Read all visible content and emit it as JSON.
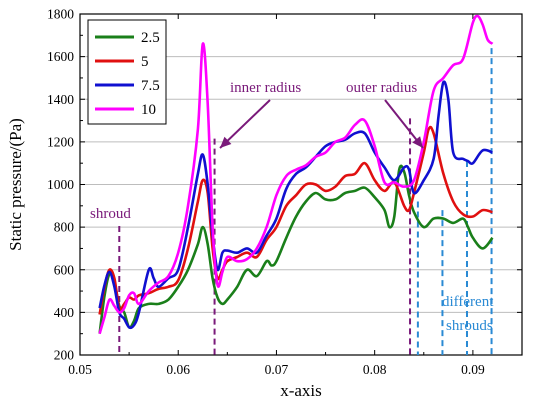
{
  "chart_data": {
    "type": "line",
    "title": "",
    "xlabel": "x-axis",
    "ylabel": "Static pressure/(Pa)",
    "xlim": [
      0.05,
      0.095
    ],
    "ylim": [
      200,
      1800
    ],
    "xticks": [
      0.05,
      0.06,
      0.07,
      0.08,
      0.09
    ],
    "xtick_labels": [
      "0.05",
      "0.06",
      "0.07",
      "0.08",
      "0.09"
    ],
    "yticks": [
      200,
      400,
      600,
      800,
      1000,
      1200,
      1400,
      1600,
      1800
    ],
    "ytick_labels": [
      "200",
      "400",
      "600",
      "800",
      "1000",
      "1200",
      "1400",
      "1600",
      "1800"
    ],
    "grid": "horizontal",
    "legend_position": "top-left",
    "series": [
      {
        "name": "2.5",
        "color": "#1a7f1a",
        "points": [
          [
            0.052,
            300
          ],
          [
            0.0525,
            480
          ],
          [
            0.053,
            580
          ],
          [
            0.0535,
            540
          ],
          [
            0.054,
            430
          ],
          [
            0.0545,
            400
          ],
          [
            0.055,
            330
          ],
          [
            0.0555,
            360
          ],
          [
            0.056,
            420
          ],
          [
            0.057,
            440
          ],
          [
            0.058,
            440
          ],
          [
            0.059,
            460
          ],
          [
            0.06,
            520
          ],
          [
            0.061,
            600
          ],
          [
            0.062,
            720
          ],
          [
            0.0625,
            800
          ],
          [
            0.063,
            720
          ],
          [
            0.0635,
            560
          ],
          [
            0.064,
            470
          ],
          [
            0.0645,
            440
          ],
          [
            0.065,
            460
          ],
          [
            0.066,
            520
          ],
          [
            0.067,
            600
          ],
          [
            0.068,
            570
          ],
          [
            0.069,
            640
          ],
          [
            0.0695,
            620
          ],
          [
            0.07,
            640
          ],
          [
            0.071,
            750
          ],
          [
            0.072,
            850
          ],
          [
            0.073,
            920
          ],
          [
            0.074,
            960
          ],
          [
            0.075,
            930
          ],
          [
            0.076,
            930
          ],
          [
            0.077,
            960
          ],
          [
            0.078,
            970
          ],
          [
            0.079,
            985
          ],
          [
            0.08,
            940
          ],
          [
            0.081,
            880
          ],
          [
            0.0815,
            800
          ],
          [
            0.082,
            850
          ],
          [
            0.0825,
            1070
          ],
          [
            0.083,
            1060
          ],
          [
            0.0835,
            950
          ],
          [
            0.084,
            870
          ],
          [
            0.085,
            800
          ],
          [
            0.086,
            840
          ],
          [
            0.087,
            840
          ],
          [
            0.088,
            820
          ],
          [
            0.089,
            840
          ],
          [
            0.0895,
            800
          ],
          [
            0.09,
            750
          ],
          [
            0.091,
            700
          ],
          [
            0.092,
            750
          ]
        ]
      },
      {
        "name": "5",
        "color": "#e01010",
        "points": [
          [
            0.052,
            390
          ],
          [
            0.0525,
            520
          ],
          [
            0.053,
            600
          ],
          [
            0.0535,
            560
          ],
          [
            0.054,
            420
          ],
          [
            0.0545,
            440
          ],
          [
            0.055,
            470
          ],
          [
            0.0555,
            460
          ],
          [
            0.056,
            480
          ],
          [
            0.057,
            490
          ],
          [
            0.058,
            510
          ],
          [
            0.059,
            520
          ],
          [
            0.06,
            550
          ],
          [
            0.061,
            700
          ],
          [
            0.062,
            920
          ],
          [
            0.0625,
            1020
          ],
          [
            0.063,
            960
          ],
          [
            0.0635,
            700
          ],
          [
            0.064,
            560
          ],
          [
            0.0645,
            600
          ],
          [
            0.065,
            640
          ],
          [
            0.066,
            660
          ],
          [
            0.067,
            680
          ],
          [
            0.068,
            660
          ],
          [
            0.069,
            740
          ],
          [
            0.07,
            800
          ],
          [
            0.071,
            900
          ],
          [
            0.072,
            950
          ],
          [
            0.073,
            1000
          ],
          [
            0.074,
            1000
          ],
          [
            0.075,
            970
          ],
          [
            0.076,
            990
          ],
          [
            0.077,
            1040
          ],
          [
            0.078,
            1050
          ],
          [
            0.079,
            1100
          ],
          [
            0.08,
            1020
          ],
          [
            0.081,
            970
          ],
          [
            0.082,
            1010
          ],
          [
            0.083,
            900
          ],
          [
            0.0835,
            880
          ],
          [
            0.084,
            960
          ],
          [
            0.085,
            1150
          ],
          [
            0.0855,
            1260
          ],
          [
            0.086,
            1240
          ],
          [
            0.087,
            1050
          ],
          [
            0.088,
            920
          ],
          [
            0.089,
            860
          ],
          [
            0.09,
            850
          ],
          [
            0.091,
            880
          ],
          [
            0.092,
            870
          ]
        ]
      },
      {
        "name": "7.5",
        "color": "#1010d0",
        "points": [
          [
            0.052,
            420
          ],
          [
            0.0525,
            530
          ],
          [
            0.053,
            590
          ],
          [
            0.0535,
            520
          ],
          [
            0.054,
            400
          ],
          [
            0.0545,
            370
          ],
          [
            0.055,
            330
          ],
          [
            0.0555,
            340
          ],
          [
            0.056,
            400
          ],
          [
            0.057,
            600
          ],
          [
            0.0575,
            560
          ],
          [
            0.058,
            520
          ],
          [
            0.059,
            560
          ],
          [
            0.06,
            600
          ],
          [
            0.061,
            800
          ],
          [
            0.062,
            1050
          ],
          [
            0.0625,
            1140
          ],
          [
            0.063,
            1000
          ],
          [
            0.0635,
            760
          ],
          [
            0.064,
            600
          ],
          [
            0.0645,
            680
          ],
          [
            0.065,
            690
          ],
          [
            0.066,
            680
          ],
          [
            0.067,
            700
          ],
          [
            0.068,
            680
          ],
          [
            0.069,
            760
          ],
          [
            0.07,
            840
          ],
          [
            0.071,
            980
          ],
          [
            0.072,
            1050
          ],
          [
            0.073,
            1080
          ],
          [
            0.074,
            1130
          ],
          [
            0.075,
            1180
          ],
          [
            0.076,
            1200
          ],
          [
            0.077,
            1210
          ],
          [
            0.078,
            1240
          ],
          [
            0.079,
            1240
          ],
          [
            0.08,
            1150
          ],
          [
            0.081,
            1080
          ],
          [
            0.082,
            1020
          ],
          [
            0.083,
            1080
          ],
          [
            0.0835,
            1070
          ],
          [
            0.084,
            960
          ],
          [
            0.085,
            1020
          ],
          [
            0.086,
            1120
          ],
          [
            0.0865,
            1320
          ],
          [
            0.087,
            1480
          ],
          [
            0.0875,
            1400
          ],
          [
            0.088,
            1150
          ],
          [
            0.089,
            1120
          ],
          [
            0.0895,
            1110
          ],
          [
            0.09,
            1100
          ],
          [
            0.091,
            1160
          ],
          [
            0.092,
            1150
          ]
        ]
      },
      {
        "name": "10",
        "color": "#ff00ff",
        "points": [
          [
            0.052,
            300
          ],
          [
            0.0525,
            380
          ],
          [
            0.053,
            460
          ],
          [
            0.0535,
            430
          ],
          [
            0.054,
            400
          ],
          [
            0.0545,
            420
          ],
          [
            0.055,
            480
          ],
          [
            0.0555,
            490
          ],
          [
            0.056,
            440
          ],
          [
            0.057,
            500
          ],
          [
            0.058,
            540
          ],
          [
            0.059,
            570
          ],
          [
            0.06,
            680
          ],
          [
            0.061,
            900
          ],
          [
            0.062,
            1260
          ],
          [
            0.0625,
            1660
          ],
          [
            0.063,
            1380
          ],
          [
            0.0635,
            800
          ],
          [
            0.064,
            530
          ],
          [
            0.0645,
            590
          ],
          [
            0.065,
            660
          ],
          [
            0.066,
            640
          ],
          [
            0.067,
            650
          ],
          [
            0.068,
            700
          ],
          [
            0.069,
            800
          ],
          [
            0.07,
            950
          ],
          [
            0.071,
            1040
          ],
          [
            0.072,
            1070
          ],
          [
            0.073,
            1090
          ],
          [
            0.074,
            1130
          ],
          [
            0.075,
            1150
          ],
          [
            0.076,
            1200
          ],
          [
            0.077,
            1220
          ],
          [
            0.078,
            1280
          ],
          [
            0.079,
            1300
          ],
          [
            0.08,
            1180
          ],
          [
            0.081,
            1010
          ],
          [
            0.082,
            1010
          ],
          [
            0.083,
            990
          ],
          [
            0.084,
            1020
          ],
          [
            0.085,
            1200
          ],
          [
            0.086,
            1440
          ],
          [
            0.087,
            1500
          ],
          [
            0.088,
            1560
          ],
          [
            0.089,
            1590
          ],
          [
            0.09,
            1760
          ],
          [
            0.0905,
            1790
          ],
          [
            0.091,
            1750
          ],
          [
            0.0915,
            1680
          ],
          [
            0.092,
            1660
          ]
        ]
      }
    ],
    "annotations": [
      {
        "text": "shroud",
        "color": "#7a1a7a"
      },
      {
        "text": "inner radius",
        "color": "#7a1a7a"
      },
      {
        "text": "outer radius",
        "color": "#7a1a7a"
      },
      {
        "text": "different",
        "color": "#2a8ad4"
      },
      {
        "text": "shrouds",
        "color": "#2a8ad4"
      }
    ]
  }
}
